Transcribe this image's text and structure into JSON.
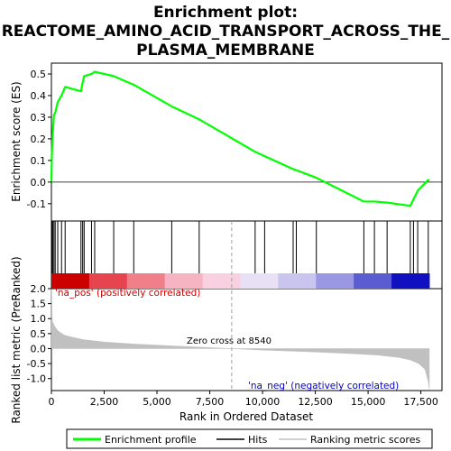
{
  "chart_data": {
    "type": "line",
    "title_lines": [
      "Enrichment plot:",
      "REACTOME_AMINO_ACID_TRANSPORT_ACROSS_THE_",
      "PLASMA_MEMBRANE"
    ],
    "panels": {
      "es": {
        "ylabel": "Enrichment score (ES)",
        "ylim": [
          -0.18,
          0.55
        ],
        "yticks": [
          -0.1,
          0.0,
          0.1,
          0.2,
          0.3,
          0.4,
          0.5
        ],
        "ytick_labels": [
          "-0.1",
          "0.0",
          "0.1",
          "0.2",
          "0.3",
          "0.4",
          "0.5"
        ],
        "grid": false
      },
      "ranked": {
        "ylabel_lines": [
          "Ranked list metric (PreRanked)"
        ],
        "ylim": [
          -1.4,
          2.0
        ],
        "yticks": [
          -1.0,
          -0.5,
          0.0,
          0.5,
          1.0,
          1.5,
          2.0
        ],
        "ytick_labels": [
          "-1.0",
          "-0.5",
          "0.0",
          "0.5",
          "1.0",
          "1.5",
          "2.0"
        ],
        "pos_label": "'na_pos' (positively correlated)",
        "neg_label": "'na_neg' (negatively correlated)",
        "zero_cross_label": "Zero cross at 8540",
        "zero_cross": 8540
      }
    },
    "xlabel": "Rank in Ordered Dataset",
    "xlim": [
      0,
      18500
    ],
    "xticks": [
      0,
      2500,
      5000,
      7500,
      10000,
      12500,
      15000,
      17500
    ],
    "xtick_labels": [
      "0",
      "2,500",
      "5,000",
      "7,500",
      "10,000",
      "12,500",
      "15,000",
      "17,500"
    ],
    "n_genes": 17900,
    "hits": [
      20,
      60,
      120,
      180,
      300,
      480,
      650,
      1400,
      1480,
      1550,
      1900,
      2050,
      2950,
      3900,
      5700,
      7000,
      9650,
      10100,
      11450,
      11600,
      12550,
      14800,
      15300,
      15900,
      17000,
      17150,
      17350,
      17850
    ],
    "series": [
      {
        "name": "Enrichment profile",
        "color": "#00ff00",
        "x": [
          0,
          20,
          60,
          120,
          180,
          300,
          480,
          650,
          1400,
          1480,
          1550,
          1900,
          2050,
          2950,
          3900,
          5700,
          7000,
          9650,
          10100,
          11450,
          11600,
          12550,
          14800,
          15300,
          15900,
          17000,
          17150,
          17350,
          17850,
          17900
        ],
        "y": [
          0.0,
          0.12,
          0.22,
          0.31,
          0.32,
          0.37,
          0.4,
          0.44,
          0.42,
          0.46,
          0.49,
          0.5,
          0.51,
          0.49,
          0.45,
          0.35,
          0.29,
          0.14,
          0.12,
          0.06,
          0.055,
          0.02,
          -0.09,
          -0.09,
          -0.095,
          -0.11,
          -0.08,
          -0.04,
          0.01,
          0.005
        ]
      }
    ],
    "ranked_metric": {
      "x": [
        0,
        50,
        150,
        300,
        600,
        1000,
        1500,
        2500,
        4000,
        6000,
        8540,
        10000,
        12000,
        14000,
        15500,
        16500,
        17000,
        17400,
        17700,
        17850,
        17900
      ],
      "y": [
        2.0,
        0.9,
        0.75,
        0.6,
        0.45,
        0.38,
        0.3,
        0.22,
        0.15,
        0.08,
        0.0,
        -0.05,
        -0.1,
        -0.16,
        -0.22,
        -0.3,
        -0.38,
        -0.5,
        -0.7,
        -1.1,
        -1.35
      ]
    },
    "legend": {
      "placement": "bottom",
      "items": [
        {
          "label": "Enrichment profile",
          "color": "#00ff00",
          "kind": "line"
        },
        {
          "label": "Hits",
          "color": "#000000",
          "kind": "line"
        },
        {
          "label": "Ranking metric scores",
          "color": "#c0c0c0",
          "kind": "line"
        }
      ]
    },
    "colors": {
      "profile": "#00ff00",
      "hits": "#000000",
      "metric_fill": "#c0c0c0",
      "pos_label": "#cc0000",
      "neg_label": "#0000cc",
      "zero_line": "#a0a0a0"
    },
    "heat_bar_colors": [
      "#cc0000",
      "#e6454f",
      "#f07f8a",
      "#f6b3c2",
      "#f8d0e0",
      "#e8e0f4",
      "#c9c5ee",
      "#9a98e2",
      "#5c5cd2",
      "#1010c0"
    ]
  }
}
